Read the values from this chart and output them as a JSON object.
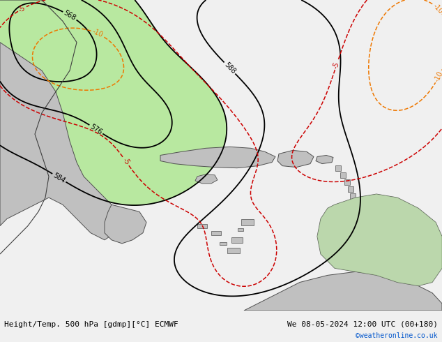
{
  "title_left": "Height/Temp. 500 hPa [gdmp][°C] ECMWF",
  "title_right": "We 08-05-2024 12:00 UTC (00+180)",
  "watermark": "©weatheronline.co.uk",
  "bg_color": "#d8d8d8",
  "green_fill_color": "#b8e8a0",
  "contour_color_black": "#000000",
  "contour_color_red": "#cc0000",
  "contour_color_orange": "#ee7700",
  "footer_fontsize": 8,
  "watermark_color": "#0055cc"
}
